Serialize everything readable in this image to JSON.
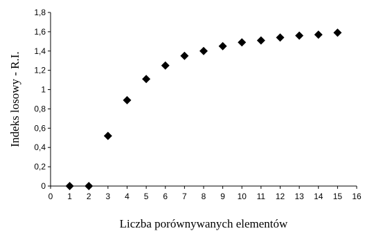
{
  "chart_data": {
    "type": "scatter",
    "xlabel": "Liczba porównywanych elementów",
    "ylabel": "Indeks losowy - R.I.",
    "xlim": [
      0,
      16
    ],
    "ylim": [
      0,
      1.8
    ],
    "xticks": [
      "0",
      "1",
      "2",
      "3",
      "4",
      "5",
      "6",
      "7",
      "8",
      "9",
      "10",
      "11",
      "12",
      "13",
      "14",
      "15",
      "16"
    ],
    "yticks": [
      "0",
      "0,2",
      "0,4",
      "0,6",
      "0,8",
      "1",
      "1,2",
      "1,4",
      "1,6",
      "1,8"
    ],
    "grid": false,
    "marker": "diamond",
    "marker_color": "#000000",
    "series": [
      {
        "x": [
          1,
          2,
          3,
          4,
          5,
          6,
          7,
          8,
          9,
          10,
          11,
          12,
          13,
          14,
          15
        ],
        "y": [
          0,
          0,
          0.52,
          0.89,
          1.11,
          1.25,
          1.35,
          1.4,
          1.45,
          1.49,
          1.51,
          1.54,
          1.56,
          1.57,
          1.59
        ]
      }
    ]
  }
}
